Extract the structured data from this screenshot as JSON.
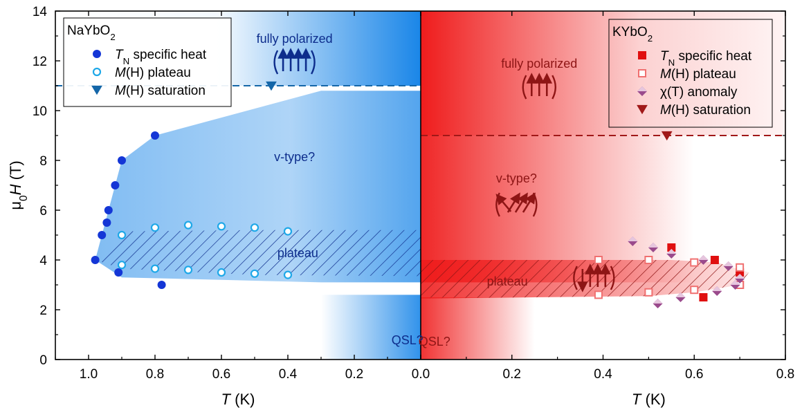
{
  "chart_data": {
    "type": "scatter",
    "y_axis": {
      "label_prefix": "μ",
      "label_sub": "0",
      "label_var": "H",
      "label_unit": " (T)",
      "range": [
        0,
        14
      ],
      "ticks": [
        "0",
        "2",
        "4",
        "6",
        "8",
        "10",
        "12",
        "14"
      ]
    },
    "panels": [
      {
        "compound_main": "NaYbO",
        "compound_sub": "2",
        "x_axis": {
          "label_var": "T",
          "label_unit": " (K)",
          "range": [
            1.1,
            0.0
          ],
          "reversed": true,
          "ticks": [
            "1.0",
            "0.8",
            "0.6",
            "0.4",
            "0.2",
            "0.0"
          ]
        },
        "accent_color": "#1a86e8",
        "dark_color": "#0d2d8c",
        "saturation_field": 11,
        "annotations": {
          "fully_polarized": "fully polarized",
          "v_type": "v-type?",
          "plateau": "plateau",
          "qsl": "QSL?"
        },
        "legend": [
          {
            "marker": "filled-circle",
            "var": "T",
            "sub": "N",
            "rest": " specific heat"
          },
          {
            "marker": "open-circle",
            "var": "M",
            "sub": "",
            "rest": "(H) plateau"
          },
          {
            "marker": "down-triangle",
            "var": "M",
            "sub": "",
            "rest": "(H) saturation"
          }
        ],
        "series": [
          {
            "name": "T_N specific heat",
            "marker": "filled-circle",
            "color": "#1436d6",
            "points": [
              [
                0.8,
                9.0
              ],
              [
                0.9,
                8.0
              ],
              [
                0.92,
                7.0
              ],
              [
                0.94,
                6.0
              ],
              [
                0.945,
                5.5
              ],
              [
                0.96,
                5.0
              ],
              [
                0.98,
                4.0
              ],
              [
                0.91,
                3.5
              ],
              [
                0.78,
                3.0
              ]
            ]
          },
          {
            "name": "M(H) plateau",
            "marker": "open-circle",
            "color": "#1ea8e8",
            "points": [
              [
                0.9,
                5.0
              ],
              [
                0.8,
                5.3
              ],
              [
                0.7,
                5.4
              ],
              [
                0.6,
                5.35
              ],
              [
                0.5,
                5.3
              ],
              [
                0.4,
                5.15
              ],
              [
                0.9,
                3.8
              ],
              [
                0.8,
                3.65
              ],
              [
                0.7,
                3.6
              ],
              [
                0.6,
                3.5
              ],
              [
                0.5,
                3.45
              ],
              [
                0.4,
                3.4
              ]
            ]
          },
          {
            "name": "M(H) saturation",
            "marker": "down-triangle",
            "color": "#1466a8",
            "points": [
              [
                0.45,
                11.0
              ]
            ]
          }
        ]
      },
      {
        "compound_main": "KYbO",
        "compound_sub": "2",
        "x_axis": {
          "label_var": "T",
          "label_unit": " (K)",
          "range": [
            0.0,
            0.8
          ],
          "reversed": false,
          "ticks": [
            "0.0",
            "0.2",
            "0.4",
            "0.6",
            "0.8"
          ]
        },
        "accent_color": "#ef1c1c",
        "dark_color": "#8e1515",
        "saturation_field": 9,
        "annotations": {
          "fully_polarized": "fully polarized",
          "v_type": "v-type?",
          "plateau": "plateau",
          "qsl": "QSL?"
        },
        "legend": [
          {
            "marker": "filled-square",
            "var": "T",
            "sub": "N",
            "rest": " specific heat"
          },
          {
            "marker": "open-square",
            "var": "M",
            "sub": "",
            "rest": "(H) plateau"
          },
          {
            "marker": "diamond",
            "var": "",
            "sub": "",
            "rest": "χ(T) anomaly"
          },
          {
            "marker": "down-triangle",
            "var": "M",
            "sub": "",
            "rest": "(H) saturation"
          }
        ],
        "series": [
          {
            "name": "T_N specific heat",
            "marker": "filled-square",
            "color": "#e01010",
            "points": [
              [
                0.55,
                4.5
              ],
              [
                0.645,
                4.0
              ],
              [
                0.7,
                3.5
              ],
              [
                0.7,
                3.0
              ],
              [
                0.62,
                2.5
              ]
            ]
          },
          {
            "name": "M(H) plateau",
            "marker": "open-square",
            "color": "#f07070",
            "points": [
              [
                0.39,
                4.0
              ],
              [
                0.5,
                4.0
              ],
              [
                0.6,
                3.9
              ],
              [
                0.7,
                3.7
              ],
              [
                0.39,
                2.6
              ],
              [
                0.5,
                2.7
              ],
              [
                0.6,
                2.8
              ],
              [
                0.7,
                3.0
              ]
            ]
          },
          {
            "name": "χ(T) anomaly",
            "marker": "diamond",
            "color": "#9a4a8c",
            "points": [
              [
                0.465,
                4.75
              ],
              [
                0.51,
                4.5
              ],
              [
                0.55,
                4.25
              ],
              [
                0.62,
                4.0
              ],
              [
                0.675,
                3.75
              ],
              [
                0.7,
                3.25
              ],
              [
                0.69,
                3.0
              ],
              [
                0.65,
                2.75
              ],
              [
                0.57,
                2.5
              ],
              [
                0.52,
                2.25
              ]
            ]
          },
          {
            "name": "M(H) saturation",
            "marker": "down-triangle",
            "color": "#a01818",
            "points": [
              [
                0.54,
                9.0
              ]
            ]
          }
        ]
      }
    ]
  }
}
